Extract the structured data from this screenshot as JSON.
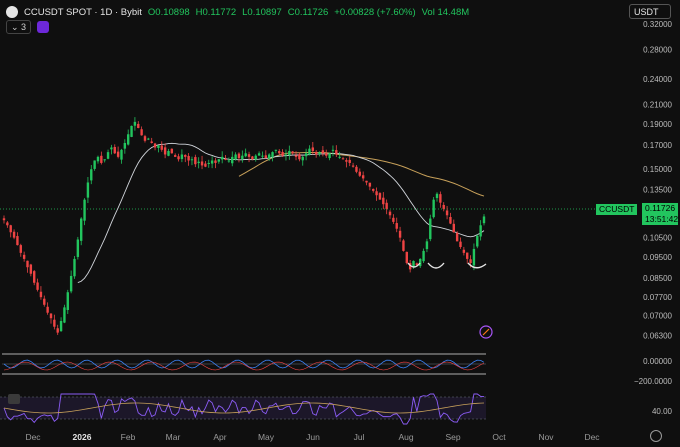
{
  "header": {
    "symbol": "CCUSDT SPOT · 1D · Bybit",
    "open": "O0.10898",
    "high": "H0.11772",
    "low": "L0.10897",
    "close": "C0.11726",
    "change": "+0.00828 (+7.60%)",
    "volume": "Vol 14.48M",
    "indicator_count": "3"
  },
  "currency_select": "USDT",
  "price_tag": {
    "symbol": "CCUSDT",
    "price": "0.11726",
    "countdown": "13:51:42"
  },
  "price_axis": [
    "0.32000",
    "0.28000",
    "0.24000",
    "0.21000",
    "0.19000",
    "0.17000",
    "0.15000",
    "0.13500",
    "0.11726",
    "0.10500",
    "0.09500",
    "0.08500",
    "0.07700",
    "0.07000",
    "0.06300"
  ],
  "osc_axis": [
    "0.00000",
    "−200.0000"
  ],
  "rsi_axis": [
    "40.00"
  ],
  "time_axis": [
    "Dec",
    "2026",
    "Feb",
    "Mar",
    "Apr",
    "May",
    "Jun",
    "Jul",
    "Aug",
    "Sep",
    "Oct",
    "Nov",
    "Dec"
  ],
  "colors": {
    "up": "#22c55e",
    "down": "#ef4444",
    "ma_fast": "#d1d5db",
    "ma_slow": "#c8a15a",
    "rsi": "#8b5cf6",
    "bg": "#0f0f0f"
  },
  "chart_data": {
    "type": "candlestick",
    "ylim": [
      0.06,
      0.33
    ],
    "y_scale": "log",
    "last_close": 0.11726,
    "closes": [
      0.115,
      0.112,
      0.108,
      0.105,
      0.101,
      0.097,
      0.094,
      0.09,
      0.087,
      0.083,
      0.08,
      0.077,
      0.074,
      0.071,
      0.069,
      0.066,
      0.064,
      0.068,
      0.073,
      0.079,
      0.086,
      0.094,
      0.104,
      0.116,
      0.128,
      0.14,
      0.15,
      0.157,
      0.16,
      0.155,
      0.158,
      0.164,
      0.168,
      0.163,
      0.16,
      0.166,
      0.172,
      0.18,
      0.188,
      0.192,
      0.186,
      0.179,
      0.174,
      0.176,
      0.172,
      0.168,
      0.17,
      0.166,
      0.162,
      0.165,
      0.163,
      0.16,
      0.158,
      0.162,
      0.16,
      0.157,
      0.158,
      0.154,
      0.156,
      0.153,
      0.152,
      0.155,
      0.157,
      0.155,
      0.158,
      0.16,
      0.158,
      0.157,
      0.16,
      0.162,
      0.159,
      0.161,
      0.163,
      0.16,
      0.158,
      0.161,
      0.163,
      0.161,
      0.159,
      0.162,
      0.164,
      0.166,
      0.163,
      0.161,
      0.162,
      0.165,
      0.163,
      0.16,
      0.158,
      0.16,
      0.163,
      0.167,
      0.165,
      0.162,
      0.164,
      0.163,
      0.161,
      0.163,
      0.166,
      0.162,
      0.16,
      0.158,
      0.156,
      0.155,
      0.152,
      0.148,
      0.145,
      0.143,
      0.14,
      0.137,
      0.134,
      0.131,
      0.128,
      0.125,
      0.122,
      0.118,
      0.114,
      0.11,
      0.105,
      0.098,
      0.092,
      0.089,
      0.093,
      0.091,
      0.094,
      0.098,
      0.103,
      0.116,
      0.128,
      0.132,
      0.126,
      0.122,
      0.118,
      0.113,
      0.108,
      0.103,
      0.1,
      0.097,
      0.094,
      0.092,
      0.099,
      0.106,
      0.112,
      0.11726
    ],
    "annotations": [
      "head-and-shoulders pattern arcs below lows"
    ]
  }
}
